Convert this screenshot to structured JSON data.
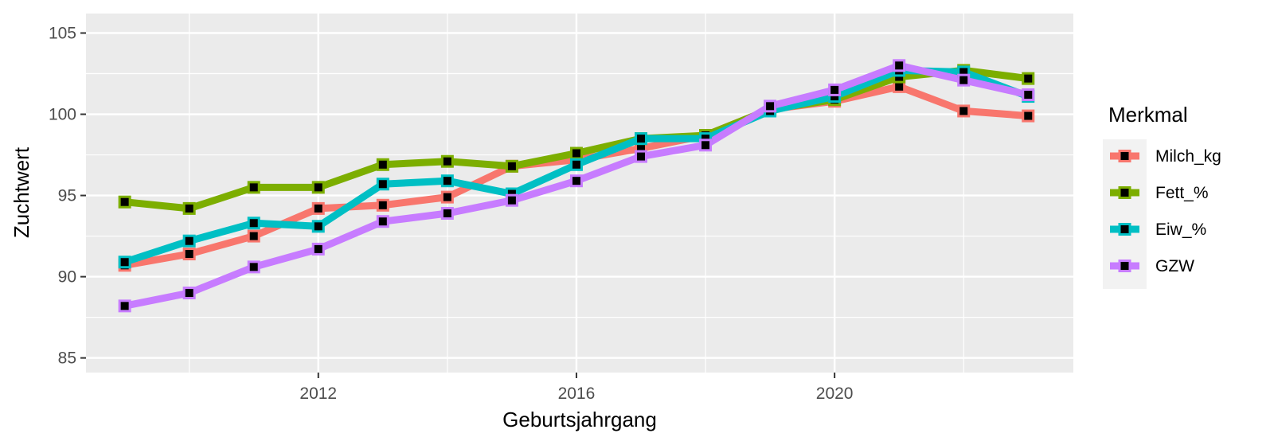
{
  "chart_data": {
    "type": "line",
    "xlabel": "Geburtsjahrgang",
    "ylabel": "Zuchtwert",
    "x": [
      2009,
      2010,
      2011,
      2012,
      2013,
      2014,
      2015,
      2016,
      2017,
      2018,
      2019,
      2020,
      2021,
      2022,
      2023
    ],
    "xticks": [
      2012,
      2016,
      2020
    ],
    "yticks": [
      85,
      90,
      95,
      100,
      105
    ],
    "xlim": [
      2008.4,
      2023.7
    ],
    "ylim": [
      84.1,
      106.2
    ],
    "grid": true,
    "legend_title": "Merkmal",
    "legend_position": "right",
    "series": [
      {
        "name": "Milch_kg",
        "color": "#F8766D",
        "values": [
          90.7,
          91.4,
          92.5,
          94.2,
          94.4,
          94.9,
          96.8,
          97.2,
          97.9,
          98.7,
          100.3,
          100.8,
          101.7,
          100.2,
          99.9
        ]
      },
      {
        "name": "Fett_%",
        "color": "#7CAE00",
        "values": [
          94.6,
          94.2,
          95.5,
          95.5,
          96.9,
          97.1,
          96.8,
          97.6,
          98.5,
          98.7,
          100.3,
          100.9,
          102.3,
          102.7,
          102.2
        ]
      },
      {
        "name": "Eiw_%",
        "color": "#00BFC4",
        "values": [
          90.9,
          92.2,
          93.3,
          93.1,
          95.7,
          95.9,
          95.1,
          96.9,
          98.5,
          98.5,
          100.2,
          101.1,
          102.7,
          102.6,
          101.1
        ]
      },
      {
        "name": "GZW",
        "color": "#C77CFF",
        "values": [
          88.2,
          89.0,
          90.6,
          91.7,
          93.4,
          93.9,
          94.7,
          95.9,
          97.4,
          98.1,
          100.5,
          101.5,
          103.0,
          102.1,
          101.2
        ]
      }
    ]
  }
}
